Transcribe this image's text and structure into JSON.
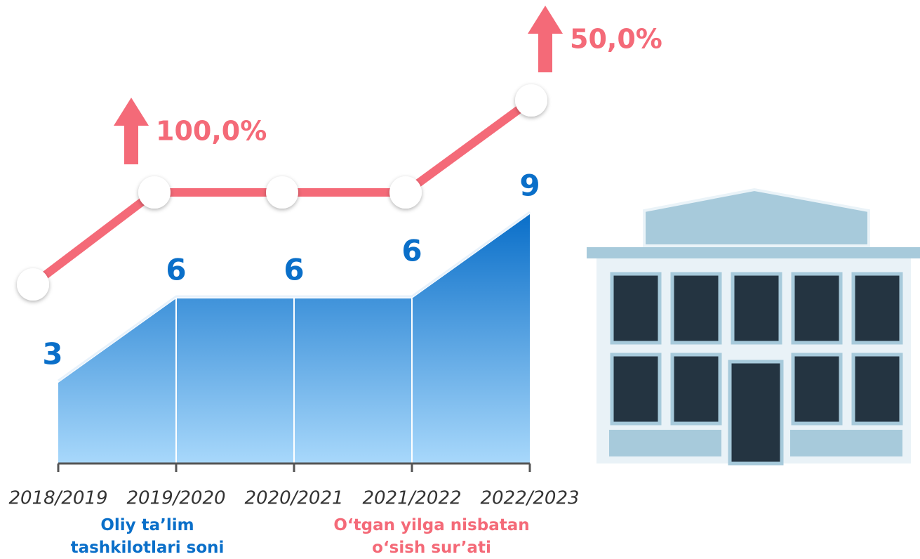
{
  "chart_data": {
    "type": "area",
    "categories": [
      "2018/2019",
      "2019/2020",
      "2020/2021",
      "2021/2022",
      "2022/2023"
    ],
    "series": [
      {
        "name": "Oliy ta’lim tashkilotlari soni",
        "color": "#0a6fc9",
        "values": [
          3,
          6,
          6,
          6,
          9
        ]
      },
      {
        "name": "O‘tgan yilga nisbatan o‘sish sur’ati",
        "color": "#f46a78",
        "values": [
          null,
          100,
          null,
          null,
          50
        ],
        "value_labels": [
          null,
          "100,0%",
          null,
          null,
          "50,0%"
        ]
      }
    ],
    "ylim": [
      0,
      9
    ]
  }
}
